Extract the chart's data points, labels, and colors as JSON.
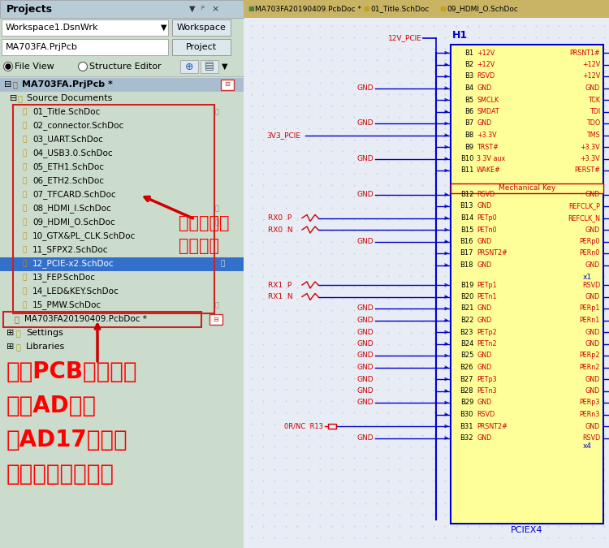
{
  "title_bar": "Projects",
  "tabs_right": [
    "MA703FA20190409.PcbDoc *",
    "01_Title.SchDoc",
    "09_HDMI_O.SchDoc"
  ],
  "left_panel_bg": "#ccdccc",
  "workspace_label": "Workspace1.DsnWrk",
  "project_label": "MA703FA.PrjPcb",
  "workspace_btn": "Workspace",
  "project_btn": "Project",
  "file_view_label": "File View",
  "structure_editor_label": "Structure Editor",
  "tree_root": "MA703FA.PrjPcb *",
  "tree_source": "Source Documents",
  "tree_items": [
    "01_Title.SchDoc",
    "02_connector.SchDoc",
    "03_UART.SchDoc",
    "04_USB3.0.SchDoc",
    "05_ETH1.SchDoc",
    "06_ETH2.SchDoc",
    "07_TFCARD.SchDoc",
    "08_HDMI_I.SchDoc",
    "09_HDMI_O.SchDoc",
    "10_GTX&PL_CLK.SchDoc",
    "11_SFPX2.SchDoc",
    "12_PCIE-x2.SchDoc",
    "13_FEP.SchDoc",
    "14_LED&KEY.SchDoc",
    "15_PMW.SchDoc"
  ],
  "pcbdoc_item": "MA703FA20190409.PcbDoc *",
  "selected_item": "12_PCIE-x2.SchDoc",
  "tree_extra": [
    "Settings",
    "Libraries"
  ],
  "annot1_line1": "底板原理图",
  "annot1_line2": "工程文件",
  "annot2_line1": "底板PCB工程文件",
  "annot2_line2": "只有AD版本",
  "annot2_line3": "我AD17能打开",
  "annot2_line4": "向下兼容哞。。。",
  "red": "#cc0000",
  "blue": "#0000cc",
  "connector_name": "H1",
  "connector_bg": "#ffff99",
  "bottom_label": "PCIEX4",
  "pins_top": [
    "B1",
    "B2",
    "B3",
    "B4",
    "B5",
    "B6",
    "B7",
    "B8",
    "B9",
    "B10",
    "B11"
  ],
  "pins_mid": [
    "B12",
    "B13",
    "B14",
    "B15",
    "B16",
    "B17",
    "B18"
  ],
  "pins_bot": [
    "B19",
    "B20",
    "B21",
    "B22",
    "B23",
    "B24",
    "B25",
    "B26",
    "B27",
    "B28",
    "B29",
    "B30",
    "B31",
    "B32"
  ],
  "il_top": [
    "+12V",
    "+12V",
    "RSVD",
    "GND",
    "SMCLK",
    "SMDAT",
    "GND",
    "+3.3V",
    "TRST#",
    "3.3V aux",
    "WAKE#"
  ],
  "ir_top": [
    "PRSNT1#",
    "+12V",
    "+12V",
    "GND",
    "TCK",
    "TDI",
    "TDO",
    "TMS",
    "+3.3V",
    "+3.3V",
    "PERST#"
  ],
  "il_mid": [
    "RSVD",
    "GND",
    "PETp0",
    "PETn0",
    "GND",
    "PRSNT2#",
    "GND"
  ],
  "ir_mid": [
    "GND",
    "REFCLK_P",
    "REFCLK_N",
    "GND",
    "PERp0",
    "PERn0",
    "GND"
  ],
  "il_bot": [
    "PETp1",
    "PETn1",
    "GND",
    "GND",
    "PETp2",
    "PETn2",
    "GND",
    "GND",
    "PETp3",
    "PETn3",
    "GND",
    "RSVD",
    "PRSNT2#",
    "GND"
  ],
  "ir_bot": [
    "RSVD",
    "GND",
    "PERp1",
    "PERn1",
    "GND",
    "GND",
    "PERp2",
    "PERn2",
    "GND",
    "GND",
    "PERp3",
    "PERn3",
    "GND",
    "RSVD"
  ]
}
